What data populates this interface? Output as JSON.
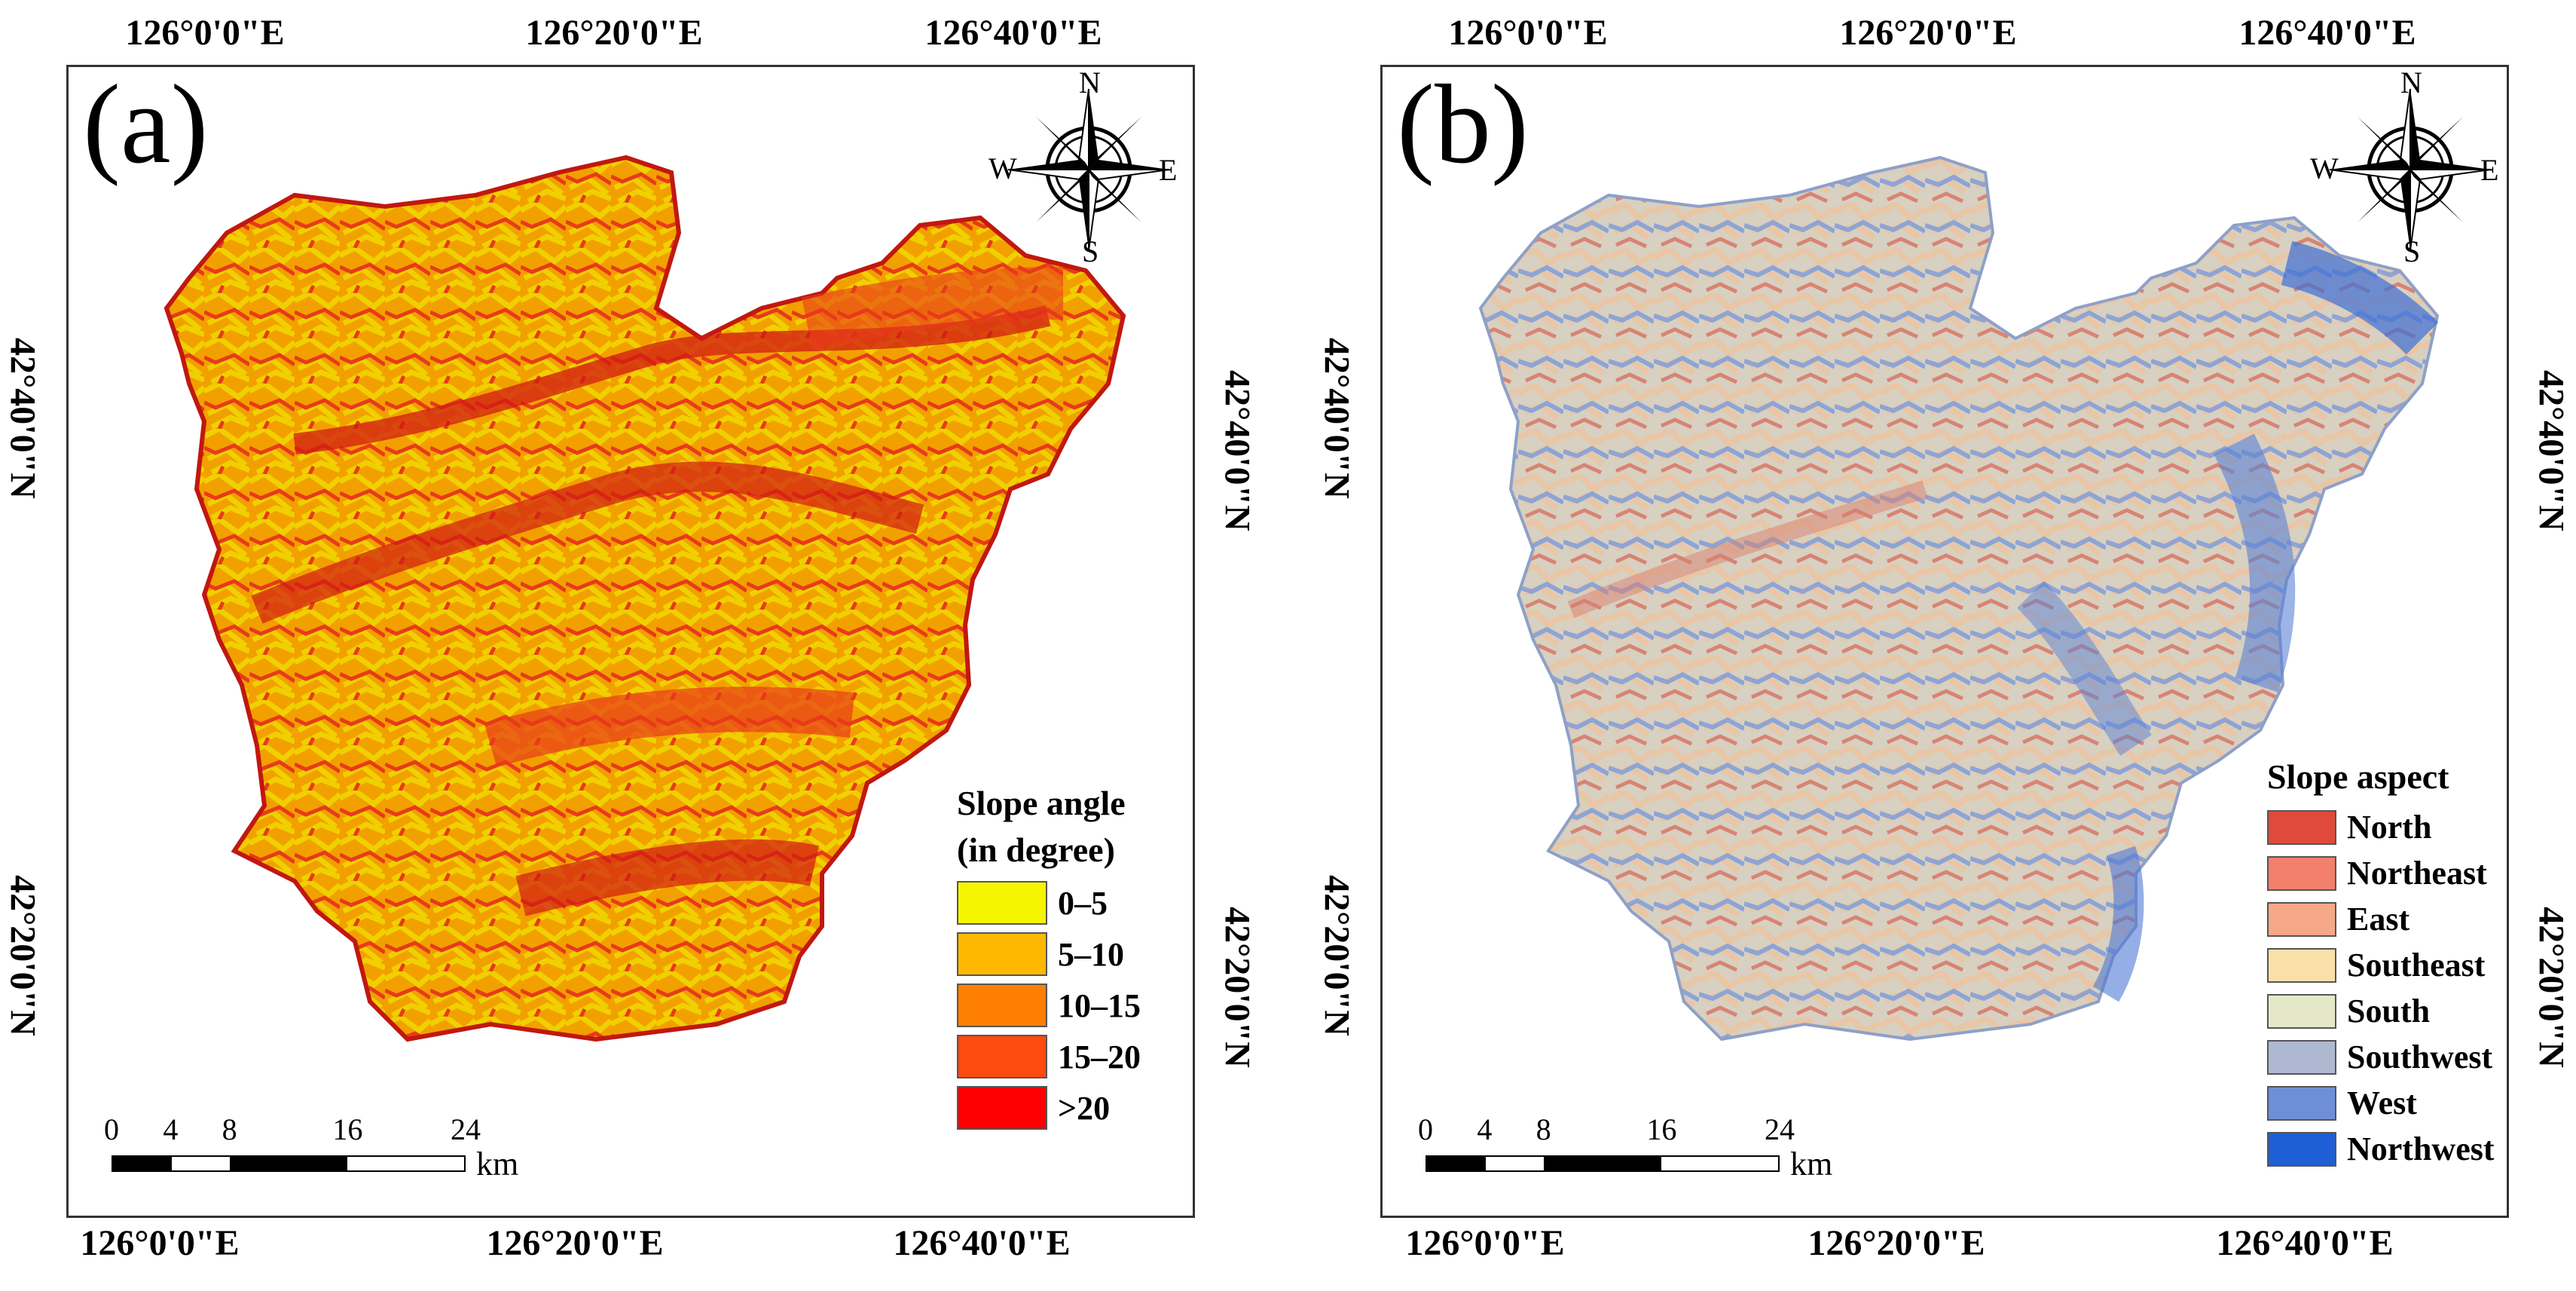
{
  "figure": {
    "panels": [
      {
        "letter": "(a)",
        "top_ticks": [
          "126°0'0\"E",
          "126°20'0\"E",
          "126°40'0\"E"
        ],
        "bottom_ticks": [
          "126°0'0\"E",
          "126°20'0\"E",
          "126°40'0\"E"
        ],
        "left_ticks": [
          "42°40'0\"N",
          "42°20'0\"N"
        ],
        "right_ticks": [
          "42°40'0\"N",
          "42°20'0\"N"
        ],
        "compass": {
          "n": "N",
          "s": "S",
          "e": "E",
          "w": "W"
        },
        "legend": {
          "title_lines": [
            "Slope angle",
            "(in degree)"
          ],
          "items": [
            {
              "label": "0–5",
              "color": "#f5f500"
            },
            {
              "label": "5–10",
              "color": "#ffb800"
            },
            {
              "label": "10–15",
              "color": "#ff7f00"
            },
            {
              "label": "15–20",
              "color": "#ff4a10"
            },
            {
              "label": ">20",
              "color": "#ff0000"
            }
          ]
        },
        "scale": {
          "numbers": [
            "0",
            "4",
            "8",
            "16",
            "24"
          ],
          "unit": "km"
        },
        "region_colors": {
          "base": "#f2a000",
          "mid": "#f0d000",
          "high": "#e83a1a",
          "dark": "#d21a14"
        }
      },
      {
        "letter": "(b)",
        "top_ticks": [
          "126°0'0\"E",
          "126°20'0\"E",
          "126°40'0\"E"
        ],
        "bottom_ticks": [
          "126°0'0\"E",
          "126°20'0\"E",
          "126°40'0\"E"
        ],
        "left_ticks": [
          "42°40'0\"N",
          "42°20'0\"N"
        ],
        "right_ticks": [
          "42°40'0\"N",
          "42°20'0\"N"
        ],
        "compass": {
          "n": "N",
          "s": "S",
          "e": "E",
          "w": "W"
        },
        "legend": {
          "title_lines": [
            "Slope aspect"
          ],
          "items": [
            {
              "label": "North",
              "color": "#e04a3a"
            },
            {
              "label": "Northeast",
              "color": "#f2806a"
            },
            {
              "label": "East",
              "color": "#f6a888"
            },
            {
              "label": "Southeast",
              "color": "#fae0a8"
            },
            {
              "label": "South",
              "color": "#e4e8c8"
            },
            {
              "label": "Southwest",
              "color": "#aeb8d0"
            },
            {
              "label": "West",
              "color": "#6e8ed8"
            },
            {
              "label": "Northwest",
              "color": "#1f5fd6"
            }
          ]
        },
        "scale": {
          "numbers": [
            "0",
            "4",
            "8",
            "16",
            "24"
          ],
          "unit": "km"
        },
        "region_colors": {
          "base": "#d8cfbf",
          "mid": "#e8c8a8",
          "high": "#6f8fd6",
          "dark": "#d88070"
        }
      }
    ]
  }
}
